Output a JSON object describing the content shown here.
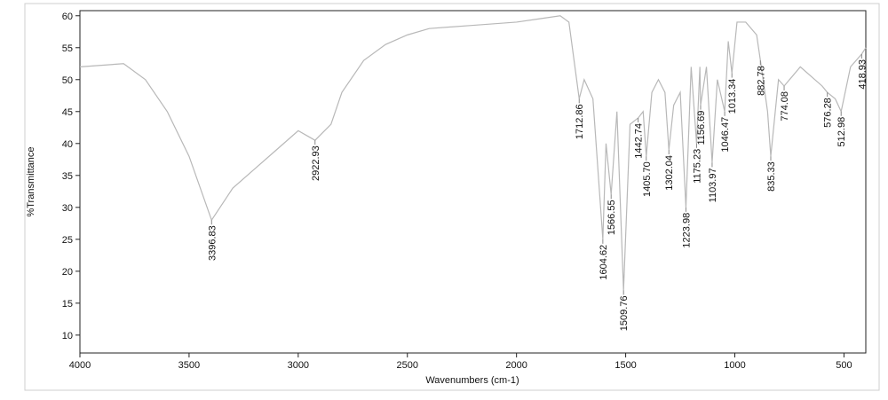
{
  "chart_data": {
    "type": "line",
    "xlabel": "Wavenumbers (cm-1)",
    "ylabel": "%Transmittance",
    "xlim": [
      4000,
      400
    ],
    "ylim": [
      7.2,
      60.8
    ],
    "xticks": [
      4000,
      3500,
      3000,
      2500,
      2000,
      1500,
      1000,
      500
    ],
    "yticks": [
      10,
      15,
      20,
      25,
      30,
      35,
      40,
      45,
      50,
      55,
      60
    ],
    "series": [
      {
        "color": "#b8b8b8",
        "x": [
          4000,
          3800,
          3700,
          3600,
          3500,
          3396.83,
          3300,
          3200,
          3100,
          3000,
          2922.93,
          2850,
          2800,
          2700,
          2600,
          2500,
          2400,
          2200,
          2000,
          1900,
          1800,
          1760,
          1712.86,
          1690,
          1650,
          1604.62,
          1590,
          1566.55,
          1540,
          1509.76,
          1480,
          1442.74,
          1420,
          1405.7,
          1380,
          1350,
          1320,
          1302.04,
          1280,
          1250,
          1223.98,
          1200,
          1175.23,
          1160,
          1156.69,
          1130,
          1103.97,
          1080,
          1046.47,
          1030,
          1013.34,
          990,
          950,
          900,
          882.78,
          850,
          835.33,
          800,
          774.08,
          700,
          600,
          576.28,
          540,
          512.98,
          470,
          418.93,
          400
        ],
        "values": [
          52,
          52.5,
          50,
          45,
          38,
          28,
          33,
          36,
          39,
          42,
          40.5,
          43,
          48,
          53,
          55.5,
          57,
          58,
          58.5,
          59,
          59.5,
          60,
          59,
          47,
          50,
          47,
          25,
          40,
          32,
          45,
          17,
          43,
          44,
          45,
          38,
          48,
          50,
          48,
          39,
          46,
          48,
          30,
          52,
          40,
          52,
          46,
          52,
          37,
          50,
          45,
          56,
          51,
          59,
          59,
          57,
          53,
          45,
          38,
          50,
          49,
          52,
          49,
          48,
          47,
          45,
          52,
          54,
          55
        ]
      }
    ],
    "peaks": {
      "x": [
        3396.83,
        2922.93,
        1712.86,
        1604.62,
        1566.55,
        1509.76,
        1442.74,
        1405.7,
        1302.04,
        1223.98,
        1175.23,
        1156.69,
        1103.97,
        1046.47,
        1013.34,
        882.78,
        835.33,
        774.08,
        576.28,
        512.98,
        418.93
      ],
      "y": [
        28,
        40.5,
        47,
        25,
        32,
        17,
        44,
        38,
        39,
        30,
        40,
        46,
        37,
        45,
        51,
        53,
        38,
        49,
        48,
        45,
        54
      ],
      "labels": [
        "3396.83",
        "2922.93",
        "1712.86",
        "1604.62",
        "1566.55",
        "1509.76",
        "1442.74",
        "1405.70",
        "1302.04",
        "1223.98",
        "1175.23",
        "1156.69",
        "1103.97",
        "1046.47",
        "1013.34",
        "882.78",
        "835.33",
        "774.08",
        "576.28",
        "512.98",
        "418.93"
      ]
    }
  }
}
